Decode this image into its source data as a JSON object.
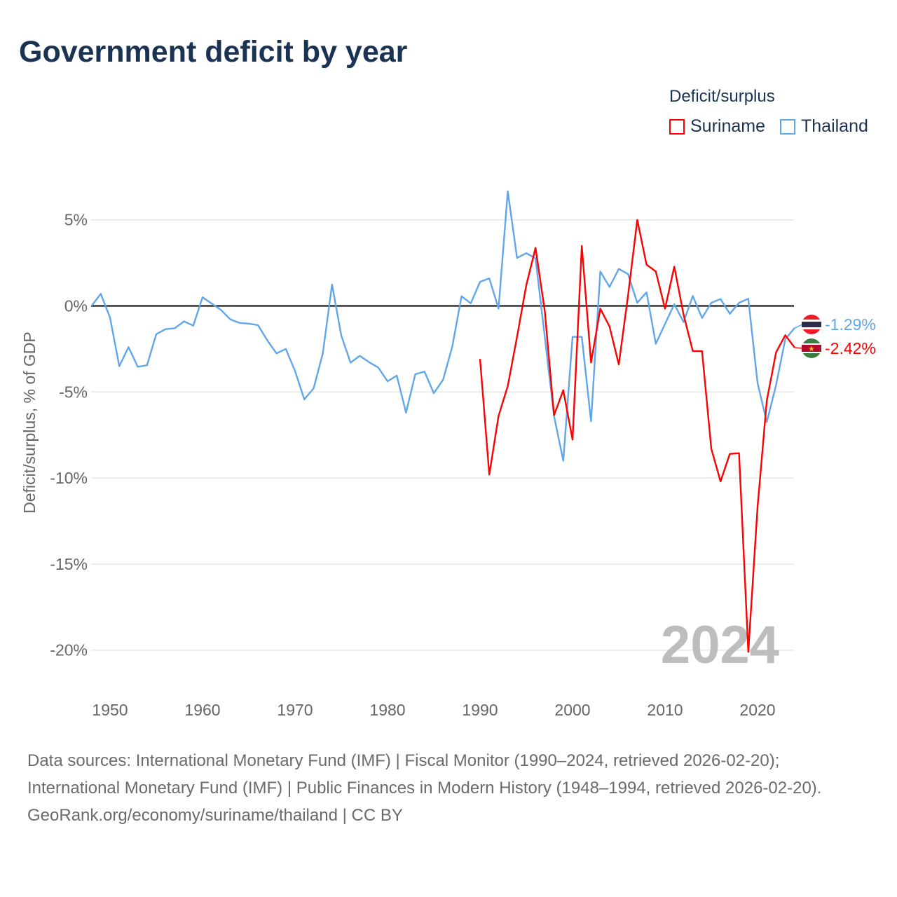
{
  "title": "Government deficit by year",
  "legend": {
    "title": "Deficit/surplus",
    "items": [
      {
        "label": "Suriname",
        "color": "#ff0000"
      },
      {
        "label": "Thailand",
        "color": "#62a6ea"
      }
    ]
  },
  "footer": {
    "sources": "Data sources: International Monetary Fund (IMF) | Fiscal Monitor (1990–2024, retrieved 2026-02-20); International Monetary Fund (IMF) | Public Finances in Modern History (1948–1994, retrieved 2026-02-20).",
    "credit": "GeoRank.org/economy/suriname/thailand | CC BY"
  },
  "chart_data": {
    "type": "line",
    "title": "Government deficit by year",
    "xlabel": "",
    "ylabel": "Deficit/surplus, % of GDP",
    "xlim": [
      1948,
      2024
    ],
    "ylim": [
      -21.5,
      7
    ],
    "x_ticks": [
      1950,
      1960,
      1970,
      1980,
      1990,
      2000,
      2010,
      2020
    ],
    "y_ticks": [
      {
        "v": 5,
        "label": "5%"
      },
      {
        "v": 0,
        "label": "0%"
      },
      {
        "v": -5,
        "label": "-5%"
      },
      {
        "v": -10,
        "label": "-10%"
      },
      {
        "v": -15,
        "label": "-15%"
      },
      {
        "v": -20,
        "label": "-20%"
      }
    ],
    "year_watermark": "2024",
    "series": [
      {
        "name": "Thailand",
        "color": "#62a6ea",
        "end_label": "-1.29%",
        "start_year": 1948,
        "values": [
          0,
          0.7,
          -0.68,
          -3.5,
          -2.4,
          -3.54,
          -3.45,
          -1.64,
          -1.35,
          -1.3,
          -0.9,
          -1.15,
          0.5,
          0.13,
          -0.24,
          -0.78,
          -0.99,
          -1.03,
          -1.12,
          -2.0,
          -2.76,
          -2.5,
          -3.78,
          -5.43,
          -4.8,
          -2.77,
          1.24,
          -1.72,
          -3.3,
          -2.9,
          -3.27,
          -3.58,
          -4.38,
          -4.05,
          -6.2,
          -3.97,
          -3.82,
          -5.07,
          -4.3,
          -2.36,
          0.56,
          0.15,
          1.4,
          1.6,
          -0.16,
          6.66,
          2.79,
          3.06,
          2.76,
          -1.8,
          -6.4,
          -9.0,
          -1.8,
          -1.8,
          -6.7,
          2.0,
          1.1,
          2.15,
          1.85,
          0.18,
          0.79,
          -2.2,
          -1.05,
          0.1,
          -0.94,
          0.58,
          -0.7,
          0.18,
          0.4,
          -0.46,
          0.18,
          0.42,
          -4.48,
          -6.75,
          -4.6,
          -1.93,
          -1.29
        ]
      },
      {
        "name": "Suriname",
        "color": "#ff0000",
        "end_label": "-2.42%",
        "start_year": 1990,
        "values": [
          -3.08,
          -9.8,
          -6.4,
          -4.65,
          -1.8,
          1.2,
          3.37,
          -0.3,
          -6.35,
          -4.9,
          -7.77,
          3.48,
          -3.29,
          -0.16,
          -1.2,
          -3.4,
          0.6,
          5.0,
          2.4,
          2.0,
          -0.16,
          2.28,
          -0.5,
          -2.63,
          -2.63,
          -8.3,
          -10.2,
          -8.6,
          -8.56,
          -20.1,
          -11.7,
          -5.5,
          -2.7,
          -1.7,
          -2.42
        ]
      }
    ]
  }
}
